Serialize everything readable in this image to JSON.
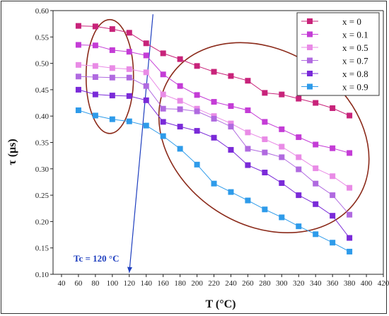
{
  "chart_data": {
    "type": "line",
    "title": "",
    "xlabel": "T (°C)",
    "ylabel": "τ (μs)",
    "xlim": [
      30,
      420
    ],
    "ylim": [
      0.1,
      0.6
    ],
    "xticks": [
      40,
      60,
      80,
      100,
      120,
      140,
      160,
      180,
      200,
      220,
      240,
      260,
      280,
      300,
      320,
      340,
      360,
      380,
      400,
      420
    ],
    "yticks": [
      0.1,
      0.15,
      0.2,
      0.25,
      0.3,
      0.35,
      0.4,
      0.45,
      0.5,
      0.55,
      0.6
    ],
    "legend_position": "top-right",
    "grid": false,
    "x": [
      60,
      80,
      100,
      120,
      140,
      160,
      180,
      200,
      220,
      240,
      260,
      280,
      300,
      320,
      340,
      360,
      380
    ],
    "series": [
      {
        "name": "x = 0",
        "color": "#c8237a",
        "values": [
          0.571,
          0.57,
          0.565,
          0.558,
          0.538,
          0.519,
          0.508,
          0.495,
          0.484,
          0.476,
          0.467,
          0.444,
          0.441,
          0.433,
          0.425,
          0.415,
          0.401
        ]
      },
      {
        "name": "x = 0.1",
        "color": "#c43cd6",
        "values": [
          0.535,
          0.534,
          0.525,
          0.522,
          0.515,
          0.479,
          0.457,
          0.44,
          0.427,
          0.419,
          0.411,
          0.389,
          0.375,
          0.36,
          0.346,
          0.339,
          0.33
        ]
      },
      {
        "name": "x = 0.5",
        "color": "#e98be6",
        "values": [
          0.497,
          0.495,
          0.491,
          0.489,
          0.483,
          0.441,
          0.429,
          0.414,
          0.4,
          0.386,
          0.369,
          0.356,
          0.342,
          0.322,
          0.301,
          0.286,
          0.264
        ]
      },
      {
        "name": "x = 0.7",
        "color": "#b06ae0",
        "values": [
          0.475,
          0.474,
          0.473,
          0.473,
          0.457,
          0.414,
          0.413,
          0.409,
          0.395,
          0.38,
          0.338,
          0.331,
          0.322,
          0.299,
          0.272,
          0.25,
          0.213
        ]
      },
      {
        "name": "x = 0.8",
        "color": "#7a2ad8",
        "values": [
          0.45,
          0.441,
          0.439,
          0.438,
          0.43,
          0.389,
          0.38,
          0.372,
          0.359,
          0.336,
          0.307,
          0.293,
          0.273,
          0.25,
          0.233,
          0.211,
          0.169
        ]
      },
      {
        "name": "x = 0.9",
        "color": "#2e9bea",
        "values": [
          0.411,
          0.401,
          0.394,
          0.39,
          0.382,
          0.362,
          0.338,
          0.308,
          0.272,
          0.256,
          0.24,
          0.223,
          0.208,
          0.191,
          0.176,
          0.16,
          0.143
        ]
      }
    ],
    "annotations": [
      {
        "type": "arrow",
        "label": "Tc = 120 °C",
        "from": [
          148,
          0.593
        ],
        "to": [
          120,
          0.103
        ],
        "color": "#1f3fbf"
      },
      {
        "type": "ellipse",
        "cx": 97,
        "cy": 0.475,
        "rx_data": 28,
        "ry_data": 0.108,
        "color": "#8b2a1a"
      },
      {
        "type": "ellipse",
        "cx": 279,
        "cy": 0.359,
        "rx_data": 132,
        "ry_data": 0.165,
        "rotate_deg": 33,
        "color": "#8b2a1a"
      }
    ]
  }
}
